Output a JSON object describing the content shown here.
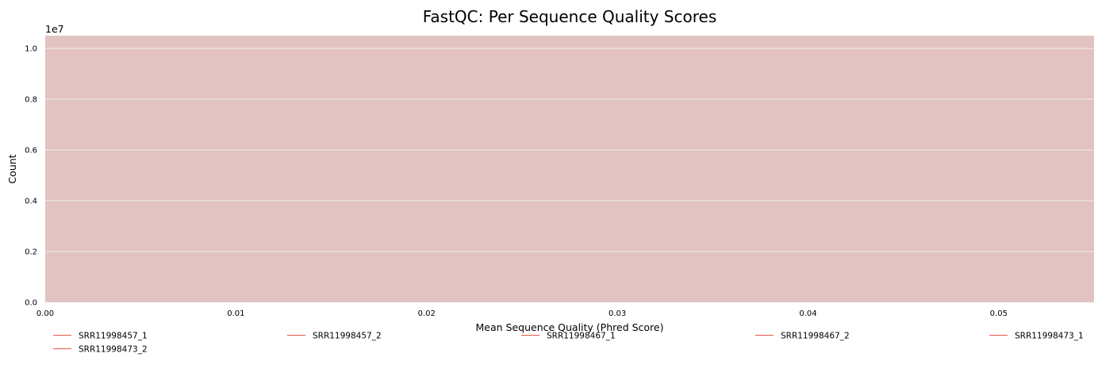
{
  "chart_data": {
    "type": "line",
    "title": "FastQC: Per Sequence Quality Scores",
    "xlabel": "Mean Sequence Quality (Phred Score)",
    "ylabel": "Count",
    "y_offset_text": "1e7",
    "xlim": [
      0,
      0.055
    ],
    "ylim": [
      0,
      1.05
    ],
    "x_ticks": [
      0.0,
      0.01,
      0.02,
      0.03,
      0.04,
      0.05
    ],
    "x_tick_labels": [
      "0.00",
      "0.01",
      "0.02",
      "0.03",
      "0.04",
      "0.05"
    ],
    "y_ticks": [
      0.0,
      0.2,
      0.4,
      0.6,
      0.8,
      1.0
    ],
    "y_tick_labels": [
      "0.0",
      "0.2",
      "0.4",
      "0.6",
      "0.8",
      "1.0"
    ],
    "grid": true,
    "background_bands": [
      {
        "y0": 0,
        "y1": 1.05,
        "color": "#e3c2c2",
        "label": ""
      }
    ],
    "legend_position": "bottom",
    "series": [
      {
        "name": "SRR11998457_1",
        "color": "#e8584a",
        "points": []
      },
      {
        "name": "SRR11998457_2",
        "color": "#e8584a",
        "points": []
      },
      {
        "name": "SRR11998467_1",
        "color": "#e8584a",
        "points": []
      },
      {
        "name": "SRR11998467_2",
        "color": "#e8584a",
        "points": []
      },
      {
        "name": "SRR11998473_1",
        "color": "#e8584a",
        "points": []
      },
      {
        "name": "SRR11998473_2",
        "color": "#e8584a",
        "points": []
      }
    ]
  }
}
